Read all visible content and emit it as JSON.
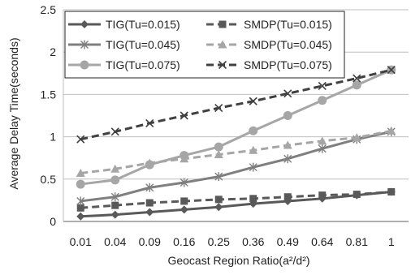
{
  "chart_data": {
    "type": "line",
    "title": "",
    "xlabel": "Geocast Region Ratio(a²/d²)",
    "ylabel": "Average Delay Time(seconds)",
    "categories": [
      "0.01",
      "0.04",
      "0.09",
      "0.16",
      "0.25",
      "0.36",
      "0.49",
      "0.64",
      "0.81",
      "1"
    ],
    "ylim": [
      0,
      2.5
    ],
    "yticks": [
      "0",
      "0.5",
      "1",
      "1.5",
      "2",
      "2.5"
    ],
    "grid": "horizontal",
    "legend_position": "top-left",
    "series": [
      {
        "name": "TIG(Tu=0.015)",
        "color": "#595959",
        "dash": "solid",
        "marker": "diamond",
        "values": [
          0.06,
          0.08,
          0.11,
          0.14,
          0.17,
          0.21,
          0.24,
          0.27,
          0.31,
          0.35
        ]
      },
      {
        "name": "SMDP(Tu=0.015)",
        "color": "#595959",
        "dash": "dashed",
        "marker": "square",
        "values": [
          0.16,
          0.19,
          0.22,
          0.24,
          0.26,
          0.27,
          0.29,
          0.31,
          0.32,
          0.35
        ]
      },
      {
        "name": "TIG(Tu=0.045)",
        "color": "#7f7f7f",
        "dash": "solid",
        "marker": "asterisk",
        "values": [
          0.24,
          0.29,
          0.4,
          0.46,
          0.53,
          0.64,
          0.74,
          0.86,
          0.97,
          1.06
        ]
      },
      {
        "name": "SMDP(Tu=0.045)",
        "color": "#a6a6a6",
        "dash": "dashed",
        "marker": "triangle",
        "values": [
          0.57,
          0.62,
          0.69,
          0.74,
          0.79,
          0.84,
          0.9,
          0.95,
          0.99,
          1.07
        ]
      },
      {
        "name": "TIG(Tu=0.075)",
        "color": "#a6a6a6",
        "dash": "solid",
        "marker": "circle",
        "values": [
          0.44,
          0.49,
          0.67,
          0.78,
          0.88,
          1.07,
          1.25,
          1.43,
          1.61,
          1.79
        ]
      },
      {
        "name": "SMDP(Tu=0.075)",
        "color": "#404040",
        "dash": "dashed",
        "marker": "x",
        "values": [
          0.97,
          1.06,
          1.16,
          1.25,
          1.34,
          1.42,
          1.51,
          1.6,
          1.69,
          1.79
        ]
      }
    ]
  }
}
